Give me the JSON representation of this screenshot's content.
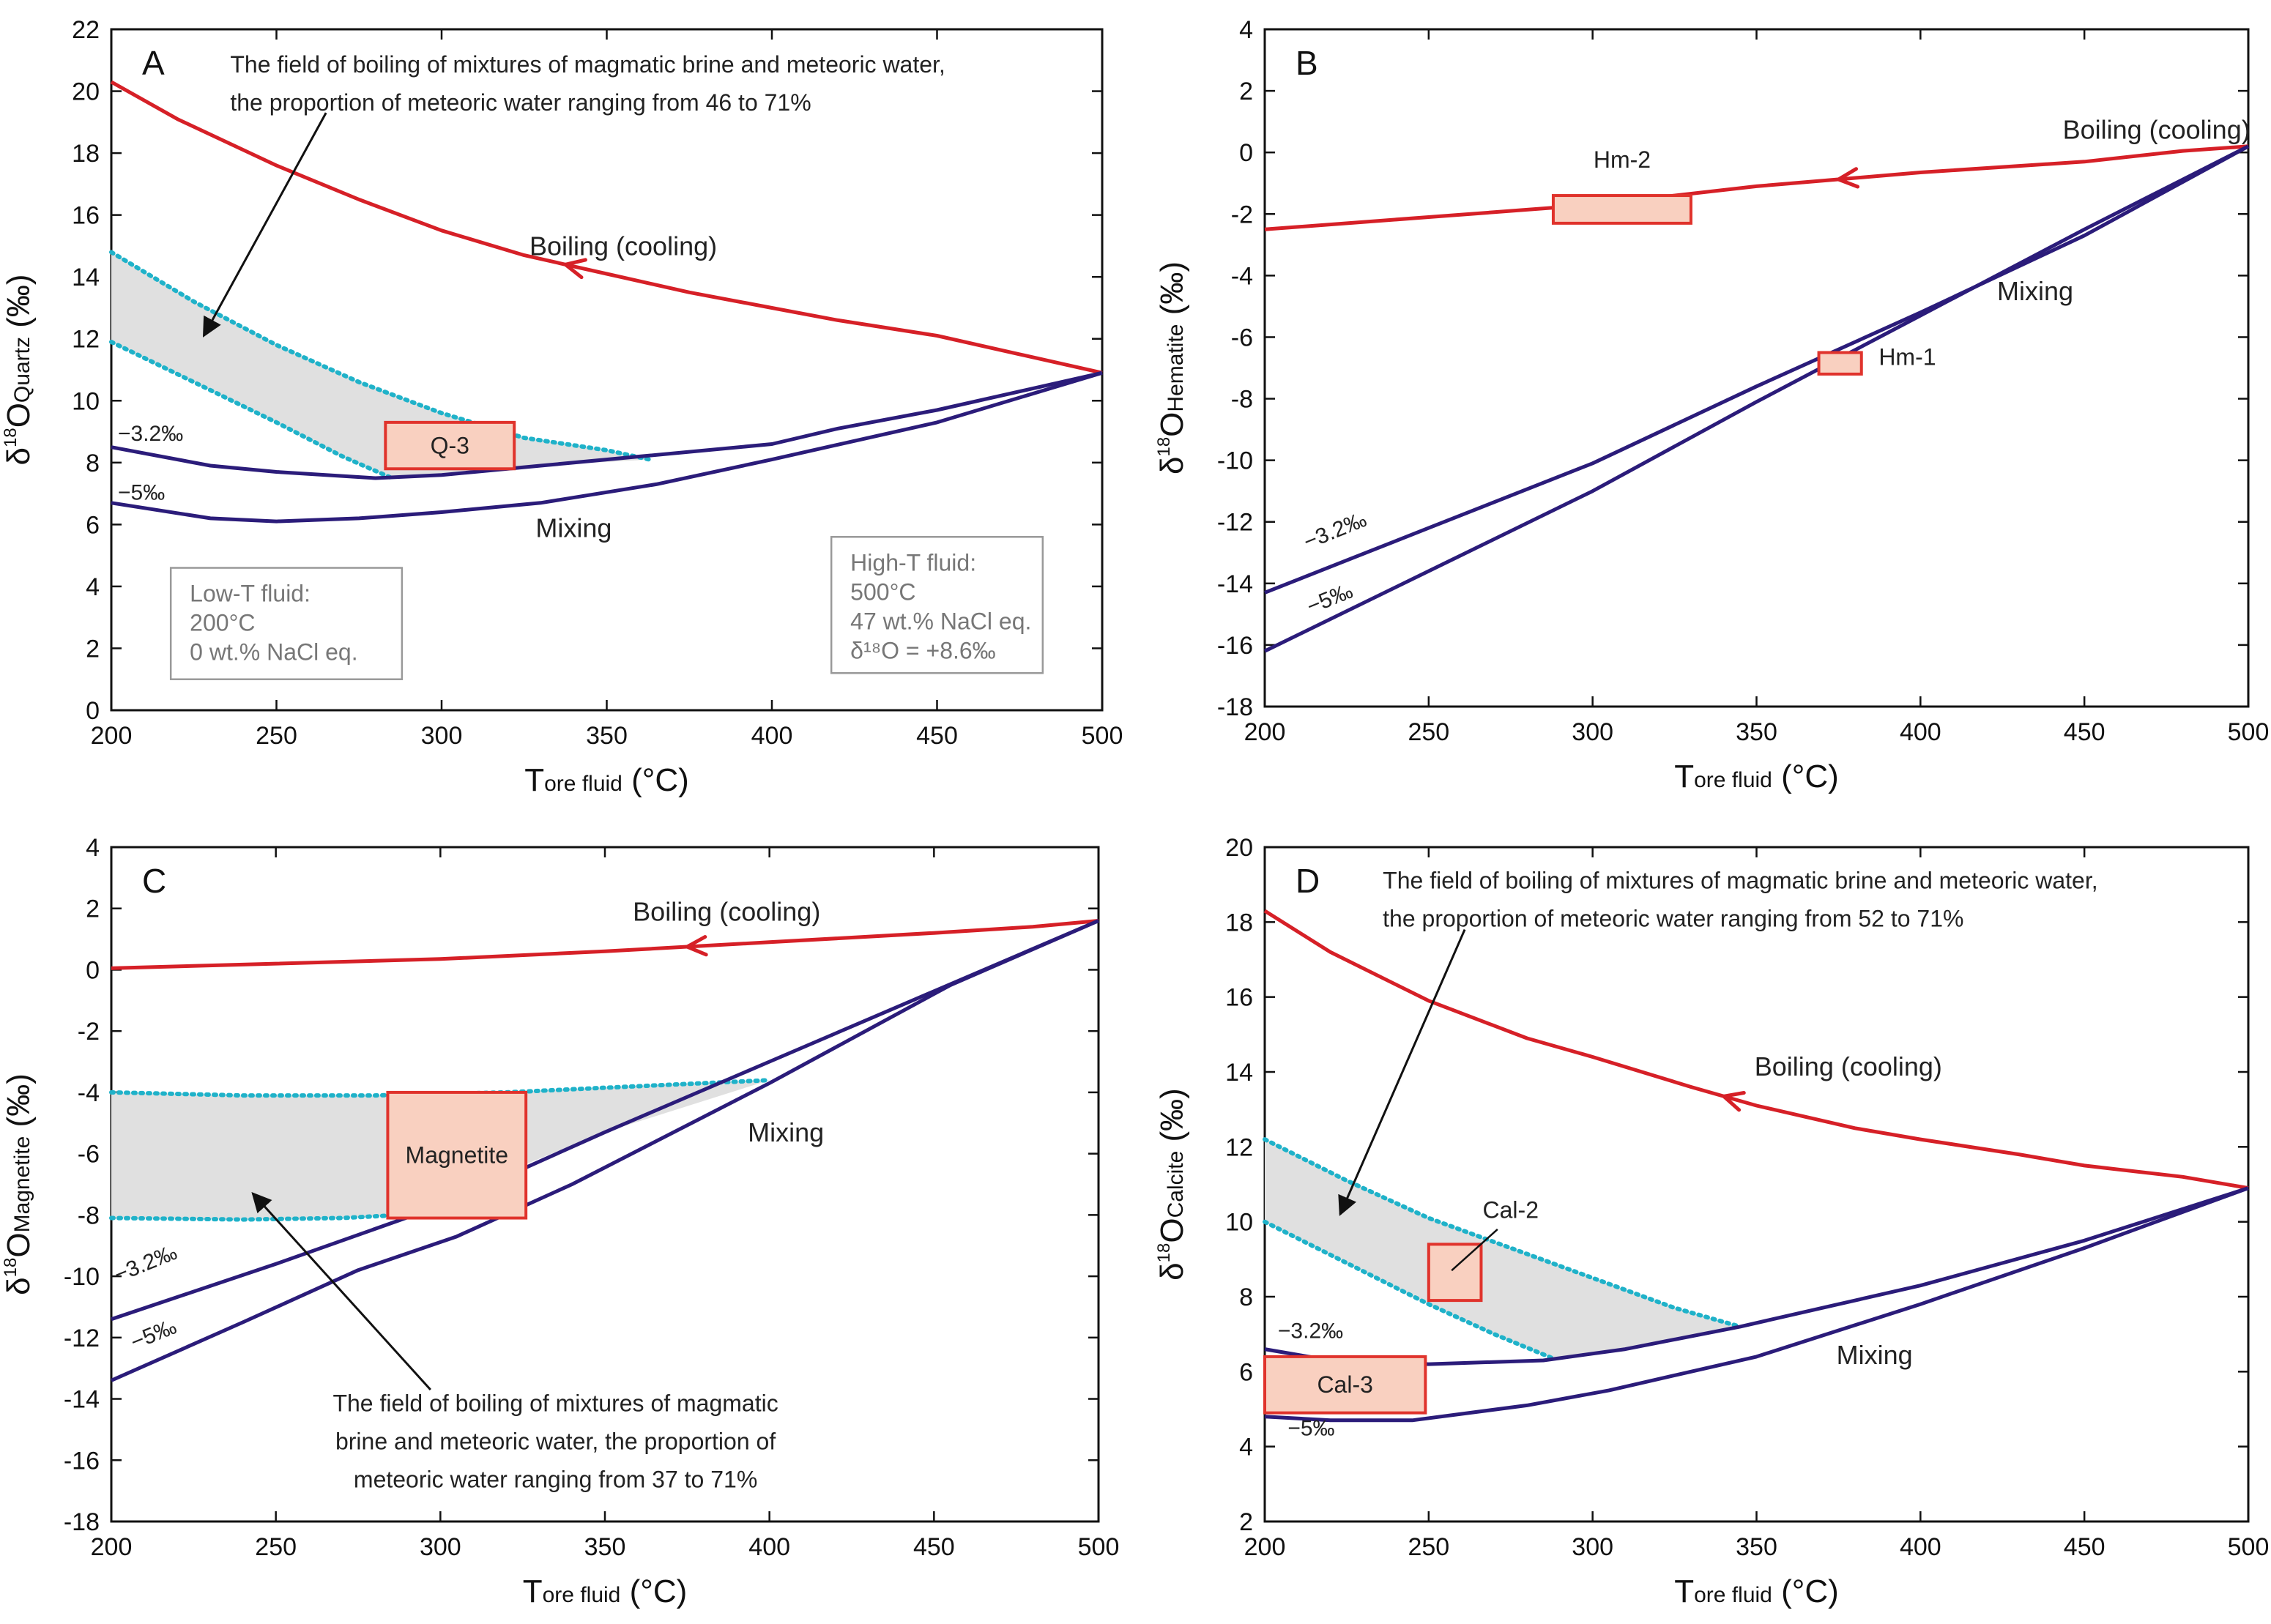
{
  "colors": {
    "boiling": "#d62027",
    "mixing": "#2b1c7a",
    "field_border": "#1fb2c9",
    "field_fill": "#e0e0e0",
    "sample_fill": "#f9d0c0",
    "sample_border": "#e0332c",
    "axis": "#111111",
    "box_text": "#777777"
  },
  "chart_data": [
    {
      "id": "A",
      "type": "line",
      "letter": "A",
      "ylabel": {
        "delta": "δ",
        "sup": "18",
        "main": "O",
        "sub": "Quartz",
        "unit": " (‰)"
      },
      "xlabel": {
        "main": "T",
        "sub": "ore fluid",
        "unit": " (°C)"
      },
      "xlim": [
        200,
        500
      ],
      "ylim": [
        0,
        22
      ],
      "xticks": [
        200,
        250,
        300,
        350,
        400,
        450,
        500
      ],
      "yticks": [
        0,
        2,
        4,
        6,
        8,
        10,
        12,
        14,
        16,
        18,
        20,
        22
      ],
      "series": [
        {
          "name": "Boiling (cooling)",
          "kind": "boiling",
          "points": [
            [
              200,
              20.3
            ],
            [
              220,
              19.1
            ],
            [
              250,
              17.6
            ],
            [
              275,
              16.5
            ],
            [
              300,
              15.5
            ],
            [
              325,
              14.7
            ],
            [
              350,
              14.1
            ],
            [
              375,
              13.5
            ],
            [
              400,
              13.0
            ],
            [
              420,
              12.6
            ],
            [
              450,
              12.1
            ],
            [
              475,
              11.5
            ],
            [
              500,
              10.9
            ]
          ]
        },
        {
          "name": "-3.2‰",
          "kind": "mixing",
          "points": [
            [
              200,
              8.5
            ],
            [
              230,
              7.9
            ],
            [
              250,
              7.7
            ],
            [
              280,
              7.5
            ],
            [
              300,
              7.6
            ],
            [
              330,
              7.9
            ],
            [
              360,
              8.2
            ],
            [
              400,
              8.6
            ],
            [
              420,
              9.1
            ],
            [
              450,
              9.7
            ],
            [
              500,
              10.9
            ]
          ]
        },
        {
          "name": "-5‰",
          "kind": "mixing",
          "points": [
            [
              200,
              6.7
            ],
            [
              230,
              6.2
            ],
            [
              250,
              6.1
            ],
            [
              275,
              6.2
            ],
            [
              300,
              6.4
            ],
            [
              330,
              6.7
            ],
            [
              365,
              7.3
            ],
            [
              400,
              8.1
            ],
            [
              450,
              9.3
            ],
            [
              500,
              10.9
            ]
          ]
        }
      ],
      "field": {
        "upper": [
          [
            200,
            14.8
          ],
          [
            225,
            13.2
          ],
          [
            250,
            11.8
          ],
          [
            275,
            10.6
          ],
          [
            300,
            9.6
          ],
          [
            325,
            8.8
          ],
          [
            350,
            8.4
          ],
          [
            363,
            8.1
          ]
        ],
        "lower": [
          [
            200,
            11.9
          ],
          [
            225,
            10.6
          ],
          [
            250,
            9.3
          ],
          [
            270,
            8.2
          ],
          [
            285,
            7.5
          ]
        ],
        "base": [
          [
            285,
            7.5
          ],
          [
            300,
            7.6
          ],
          [
            330,
            7.9
          ],
          [
            363,
            8.1
          ]
        ]
      },
      "samples": [
        {
          "label": "Q-3",
          "x": [
            283,
            322
          ],
          "y": [
            7.8,
            9.3
          ],
          "text_inside": true
        }
      ],
      "labels": [
        {
          "text": "Boiling (cooling)",
          "x": 355,
          "y": 14.7
        },
        {
          "text": "Mixing",
          "x": 340,
          "y": 5.6
        },
        {
          "text": "−3.2‰",
          "x": 202,
          "y": 8.7
        },
        {
          "text": "−5‰",
          "x": 202,
          "y": 6.8
        }
      ],
      "annotation": {
        "lines": [
          "The field of boiling of mixtures of magmatic brine and meteoric water,",
          "the proportion of meteoric water ranging from 46 to 71%"
        ],
        "text_x": 236,
        "text_y": 20.6,
        "arrow_from": [
          265,
          19.3
        ],
        "arrow_to": [
          228,
          12.1
        ]
      },
      "info_boxes": [
        {
          "lines": [
            "Low-T fluid:",
            "200°C",
            "0 wt.% NaCl eq."
          ],
          "x": [
            218,
            288
          ],
          "y": [
            1.0,
            4.6
          ]
        },
        {
          "lines": [
            "High-T fluid:",
            "500°C",
            "47 wt.% NaCl eq.",
            "δ¹⁸O = +8.6‰"
          ],
          "x": [
            418,
            482
          ],
          "y": [
            1.2,
            5.6
          ]
        }
      ]
    },
    {
      "id": "B",
      "type": "line",
      "letter": "B",
      "ylabel": {
        "delta": "δ",
        "sup": "18",
        "main": "O",
        "sub": "Hematite",
        "unit": " (‰)"
      },
      "xlabel": {
        "main": "T",
        "sub": "ore fluid",
        "unit": " (°C)"
      },
      "xlim": [
        200,
        500
      ],
      "ylim": [
        -18,
        4
      ],
      "xticks": [
        200,
        250,
        300,
        350,
        400,
        450,
        500
      ],
      "yticks": [
        -18,
        -16,
        -14,
        -12,
        -10,
        -8,
        -6,
        -4,
        -2,
        0,
        2,
        4
      ],
      "series": [
        {
          "name": "Boiling (cooling)",
          "kind": "boiling",
          "points": [
            [
              200,
              -2.5
            ],
            [
              250,
              -2.1
            ],
            [
              300,
              -1.7
            ],
            [
              350,
              -1.1
            ],
            [
              400,
              -0.65
            ],
            [
              450,
              -0.3
            ],
            [
              480,
              0.05
            ],
            [
              500,
              0.2
            ]
          ]
        },
        {
          "name": "-3.2‰",
          "kind": "mixing",
          "points": [
            [
              200,
              -14.3
            ],
            [
              250,
              -12.2
            ],
            [
              300,
              -10.1
            ],
            [
              350,
              -7.6
            ],
            [
              400,
              -5.2
            ],
            [
              450,
              -2.7
            ],
            [
              500,
              0.2
            ]
          ]
        },
        {
          "name": "-5‰",
          "kind": "mixing",
          "points": [
            [
              200,
              -16.2
            ],
            [
              250,
              -13.6
            ],
            [
              300,
              -11.0
            ],
            [
              350,
              -8.1
            ],
            [
              400,
              -5.3
            ],
            [
              450,
              -2.5
            ],
            [
              500,
              0.2
            ]
          ]
        }
      ],
      "samples": [
        {
          "label": "Hm-2",
          "x": [
            288,
            330
          ],
          "y": [
            -2.3,
            -1.4
          ],
          "label_x": 309,
          "label_y": -0.5
        },
        {
          "label": "Hm-1",
          "x": [
            369,
            382
          ],
          "y": [
            -7.2,
            -6.5
          ],
          "label_x": 396,
          "label_y": -6.9
        }
      ],
      "labels": [
        {
          "text": "Boiling (cooling)",
          "x": 472,
          "y": 0.45
        },
        {
          "text": "Mixing",
          "x": 435,
          "y": -4.8
        },
        {
          "text": "−3.2‰",
          "x": 213,
          "y": -12.9,
          "rotate": -22
        },
        {
          "text": "−5‰",
          "x": 214,
          "y": -15.0,
          "rotate": -22
        }
      ],
      "field": null,
      "annotation": null,
      "info_boxes": []
    },
    {
      "id": "C",
      "type": "line",
      "letter": "C",
      "ylabel": {
        "delta": "δ",
        "sup": "18",
        "main": "O",
        "sub": "Magnetite",
        "unit": " (‰)"
      },
      "xlabel": {
        "main": "T",
        "sub": "ore fluid",
        "unit": " (°C)"
      },
      "xlim": [
        200,
        500
      ],
      "ylim": [
        -18,
        4
      ],
      "xticks": [
        200,
        250,
        300,
        350,
        400,
        450,
        500
      ],
      "yticks": [
        -18,
        -16,
        -14,
        -12,
        -10,
        -8,
        -6,
        -4,
        -2,
        0,
        2,
        4
      ],
      "series": [
        {
          "name": "Boiling (cooling)",
          "kind": "boiling",
          "points": [
            [
              200,
              0.05
            ],
            [
              250,
              0.2
            ],
            [
              300,
              0.35
            ],
            [
              350,
              0.6
            ],
            [
              400,
              0.9
            ],
            [
              450,
              1.2
            ],
            [
              480,
              1.4
            ],
            [
              500,
              1.6
            ]
          ]
        },
        {
          "name": "-3.2‰",
          "kind": "mixing",
          "points": [
            [
              200,
              -11.4
            ],
            [
              250,
              -9.6
            ],
            [
              300,
              -7.7
            ],
            [
              350,
              -5.3
            ],
            [
              400,
              -3.0
            ],
            [
              450,
              -0.7
            ],
            [
              500,
              1.6
            ]
          ]
        },
        {
          "name": "-5‰",
          "kind": "mixing",
          "points": [
            [
              200,
              -13.4
            ],
            [
              240,
              -11.5
            ],
            [
              275,
              -9.8
            ],
            [
              305,
              -8.7
            ],
            [
              340,
              -7.0
            ],
            [
              400,
              -3.7
            ],
            [
              455,
              -0.5
            ],
            [
              500,
              1.6
            ]
          ]
        }
      ],
      "field": {
        "upper": [
          [
            200,
            -4.0
          ],
          [
            240,
            -4.1
          ],
          [
            280,
            -4.1
          ],
          [
            320,
            -4.0
          ],
          [
            360,
            -3.8
          ],
          [
            400,
            -3.6
          ]
        ],
        "lower": [
          [
            200,
            -8.1
          ],
          [
            240,
            -8.15
          ],
          [
            270,
            -8.1
          ],
          [
            288,
            -8.0
          ]
        ],
        "base": [
          [
            288,
            -8.0
          ],
          [
            320,
            -6.6
          ],
          [
            350,
            -5.3
          ],
          [
            400,
            -3.6
          ]
        ]
      },
      "samples": [
        {
          "label": "Magnetite",
          "x": [
            284,
            326
          ],
          "y": [
            -8.1,
            -4.0
          ],
          "text_inside": true
        }
      ],
      "labels": [
        {
          "text": "Boiling (cooling)",
          "x": 387,
          "y": 1.6
        },
        {
          "text": "Mixing",
          "x": 405,
          "y": -5.6
        },
        {
          "text": "−3.2‰",
          "x": 202,
          "y": -10.2,
          "rotate": -22
        },
        {
          "text": "−5‰",
          "x": 207,
          "y": -12.4,
          "rotate": -22
        }
      ],
      "annotation": {
        "lines": [
          "The field of boiling of mixtures of magmatic",
          "brine and meteoric water, the proportion of",
          "meteoric water ranging from 37 to 71%"
        ],
        "text_x": 335,
        "text_y": -14.4,
        "arrow_from": [
          297,
          -13.7
        ],
        "arrow_to": [
          243,
          -7.3
        ],
        "anchor": "middle"
      },
      "info_boxes": []
    },
    {
      "id": "D",
      "type": "line",
      "letter": "D",
      "ylabel": {
        "delta": "δ",
        "sup": "18",
        "main": "O",
        "sub": "Calcite",
        "unit": " (‰)"
      },
      "xlabel": {
        "main": "T",
        "sub": "ore fluid",
        "unit": " (°C)"
      },
      "xlim": [
        200,
        500
      ],
      "ylim": [
        2,
        20
      ],
      "xticks": [
        200,
        250,
        300,
        350,
        400,
        450,
        500
      ],
      "yticks": [
        2,
        4,
        6,
        8,
        10,
        12,
        14,
        16,
        18,
        20
      ],
      "series": [
        {
          "name": "Boiling (cooling)",
          "kind": "boiling",
          "points": [
            [
              200,
              18.3
            ],
            [
              220,
              17.2
            ],
            [
              250,
              15.9
            ],
            [
              280,
              14.9
            ],
            [
              300,
              14.4
            ],
            [
              330,
              13.6
            ],
            [
              350,
              13.1
            ],
            [
              380,
              12.5
            ],
            [
              400,
              12.2
            ],
            [
              430,
              11.8
            ],
            [
              450,
              11.5
            ],
            [
              480,
              11.2
            ],
            [
              500,
              10.9
            ]
          ]
        },
        {
          "name": "-3.2‰",
          "kind": "mixing",
          "points": [
            [
              200,
              6.6
            ],
            [
              220,
              6.3
            ],
            [
              250,
              6.2
            ],
            [
              285,
              6.3
            ],
            [
              310,
              6.6
            ],
            [
              345,
              7.2
            ],
            [
              400,
              8.3
            ],
            [
              450,
              9.5
            ],
            [
              500,
              10.9
            ]
          ]
        },
        {
          "name": "-5‰",
          "kind": "mixing",
          "points": [
            [
              200,
              4.8
            ],
            [
              220,
              4.7
            ],
            [
              245,
              4.7
            ],
            [
              280,
              5.1
            ],
            [
              305,
              5.5
            ],
            [
              350,
              6.4
            ],
            [
              400,
              7.8
            ],
            [
              450,
              9.3
            ],
            [
              500,
              10.9
            ]
          ]
        }
      ],
      "field": {
        "upper": [
          [
            200,
            12.2
          ],
          [
            225,
            11.1
          ],
          [
            250,
            10.1
          ],
          [
            275,
            9.3
          ],
          [
            300,
            8.5
          ],
          [
            325,
            7.7
          ],
          [
            345,
            7.2
          ]
        ],
        "lower": [
          [
            200,
            10.0
          ],
          [
            225,
            8.9
          ],
          [
            250,
            7.8
          ],
          [
            270,
            7.0
          ],
          [
            288,
            6.35
          ]
        ],
        "base": [
          [
            288,
            6.35
          ],
          [
            310,
            6.6
          ],
          [
            345,
            7.2
          ]
        ]
      },
      "samples": [
        {
          "label": "Cal-2",
          "x": [
            250,
            266
          ],
          "y": [
            7.9,
            9.4
          ],
          "label_x": 275,
          "label_y": 10.1,
          "leader": [
            [
              271,
              9.8
            ],
            [
              257,
              8.7
            ]
          ]
        },
        {
          "label": "Cal-3",
          "x": [
            200,
            249
          ],
          "y": [
            4.9,
            6.4
          ],
          "text_inside": true
        }
      ],
      "labels": [
        {
          "text": "Boiling (cooling)",
          "x": 378,
          "y": 13.9
        },
        {
          "text": "Mixing",
          "x": 386,
          "y": 6.2
        },
        {
          "text": "−3.2‰",
          "x": 204,
          "y": 6.9
        },
        {
          "text": "−5‰",
          "x": 207,
          "y": 4.3
        }
      ],
      "annotation": {
        "lines": [
          "The field of boiling of mixtures of magmatic brine and meteoric water,",
          "the proportion of meteoric water ranging from 52 to 71%"
        ],
        "text_x": 236,
        "text_y": 18.9,
        "arrow_from": [
          261,
          17.8
        ],
        "arrow_to": [
          223,
          10.2
        ]
      },
      "info_boxes": []
    }
  ]
}
